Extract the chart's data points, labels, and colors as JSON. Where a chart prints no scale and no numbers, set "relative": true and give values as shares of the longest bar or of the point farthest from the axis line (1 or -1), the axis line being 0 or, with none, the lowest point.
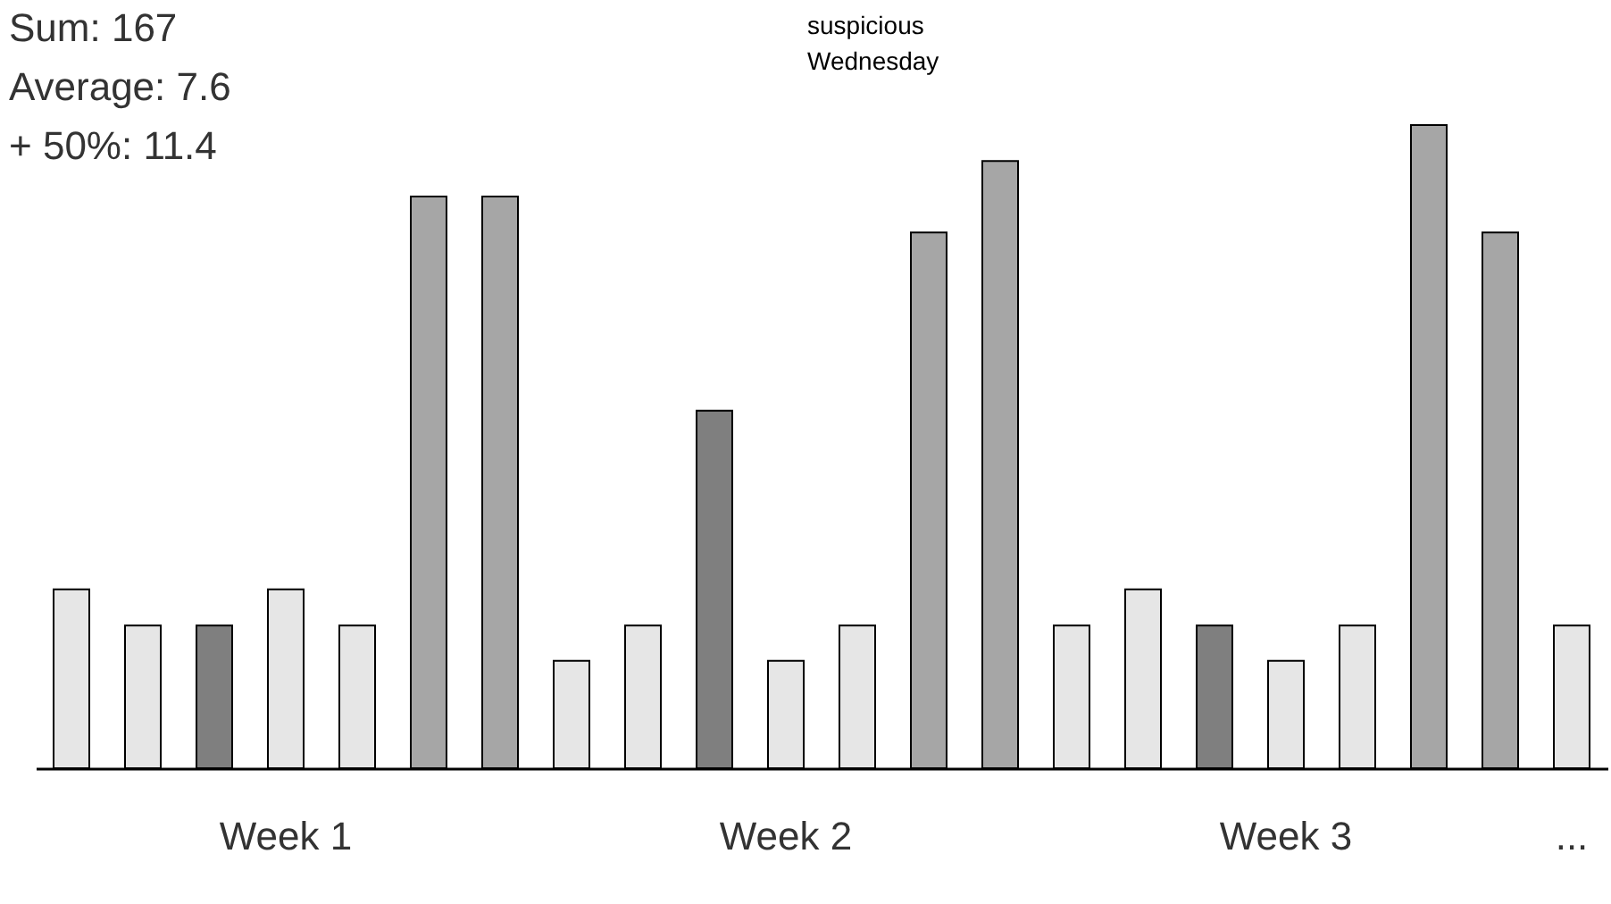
{
  "chart_data": {
    "type": "bar",
    "relative": true,
    "categories": [
      null,
      null,
      null,
      "Week 1",
      null,
      null,
      null,
      null,
      null,
      null,
      "Week 2",
      null,
      null,
      null,
      null,
      null,
      null,
      "Week 3",
      null,
      null,
      null,
      "..."
    ],
    "values": [
      0.278,
      0.222,
      0.222,
      0.278,
      0.222,
      0.889,
      0.889,
      0.167,
      0.222,
      0.556,
      0.167,
      0.222,
      0.833,
      0.944,
      0.222,
      0.278,
      0.222,
      0.167,
      0.222,
      1,
      0.833,
      0.222
    ],
    "colors": [
      "#e6e6e6",
      "#e6e6e6",
      "#7f7f7f",
      "#e6e6e6",
      "#e6e6e6",
      "#a6a6a6",
      "#a6a6a6",
      "#e6e6e6",
      "#e6e6e6",
      "#7f7f7f",
      "#e6e6e6",
      "#e6e6e6",
      "#a6a6a6",
      "#a6a6a6",
      "#e6e6e6",
      "#e6e6e6",
      "#7f7f7f",
      "#e6e6e6",
      "#e6e6e6",
      "#a6a6a6",
      "#a6a6a6",
      "#e6e6e6"
    ],
    "annotations": [
      "Sum: 167",
      "Average: 7.6",
      "+ 50%: 11.4",
      "suspicious\nWednesday"
    ],
    "grid": false
  }
}
